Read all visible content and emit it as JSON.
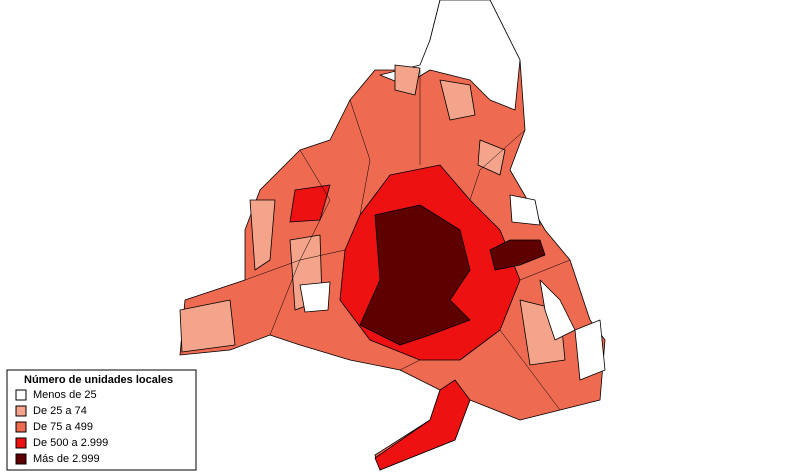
{
  "legend": {
    "title": "Número de unidades locales",
    "items": [
      {
        "label": "Menos de 25",
        "color": "#ffffff"
      },
      {
        "label": "De 25 a 74",
        "color": "#f4a48a"
      },
      {
        "label": "De 75 a 499",
        "color": "#ee6a50"
      },
      {
        "label": "De 500 a 2.999",
        "color": "#ee1111"
      },
      {
        "label": "Más de 2.999",
        "color": "#5e0000"
      }
    ]
  }
}
